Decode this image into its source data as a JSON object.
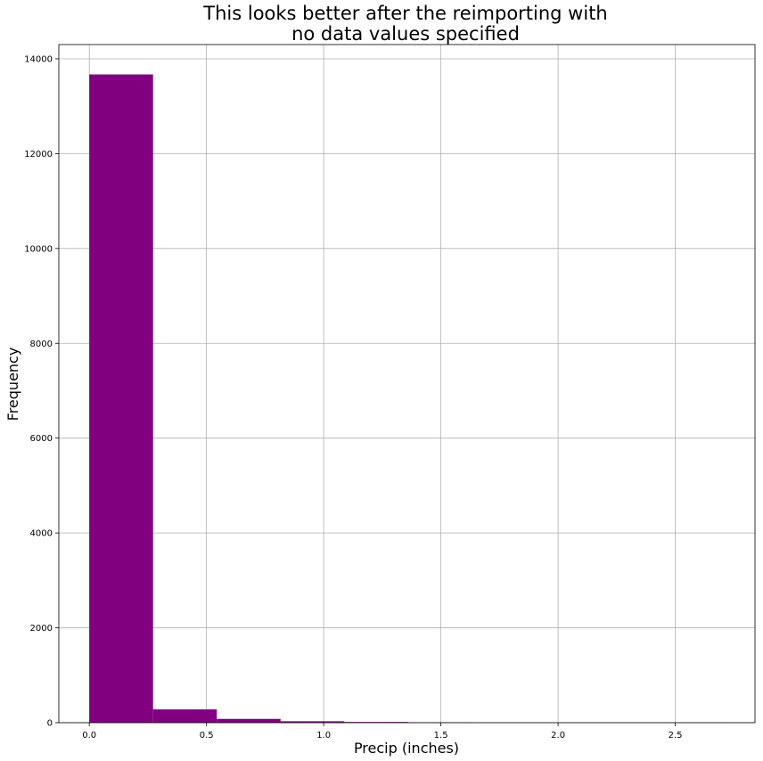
{
  "chart_data": {
    "type": "bar",
    "title_line1": "This looks better after the reimporting with",
    "title_line2": "no data values specified",
    "xlabel": "Precip (inches)",
    "ylabel": "Frequency",
    "color": "#800080",
    "grid": true,
    "xlim": [
      -0.13,
      2.84
    ],
    "ylim": [
      0,
      14300
    ],
    "xticks": [
      0.0,
      0.5,
      1.0,
      1.5,
      2.0,
      2.5
    ],
    "xtick_labels": [
      "0.0",
      "0.5",
      "1.0",
      "1.5",
      "2.0",
      "2.5"
    ],
    "yticks": [
      0,
      2000,
      4000,
      6000,
      8000,
      10000,
      12000,
      14000
    ],
    "ytick_labels": [
      "0",
      "2000",
      "4000",
      "6000",
      "8000",
      "10000",
      "12000",
      "14000"
    ],
    "bins": [
      {
        "x0": 0.0,
        "x1": 0.272,
        "value": 13670
      },
      {
        "x0": 0.272,
        "x1": 0.544,
        "value": 280
      },
      {
        "x0": 0.544,
        "x1": 0.816,
        "value": 80
      },
      {
        "x0": 0.816,
        "x1": 1.088,
        "value": 30
      },
      {
        "x0": 1.088,
        "x1": 1.36,
        "value": 15
      },
      {
        "x0": 1.36,
        "x1": 1.632,
        "value": 8
      },
      {
        "x0": 1.632,
        "x1": 1.904,
        "value": 0
      },
      {
        "x0": 1.904,
        "x1": 2.176,
        "value": 0
      },
      {
        "x0": 2.176,
        "x1": 2.448,
        "value": 0
      },
      {
        "x0": 2.448,
        "x1": 2.72,
        "value": 1
      }
    ]
  }
}
